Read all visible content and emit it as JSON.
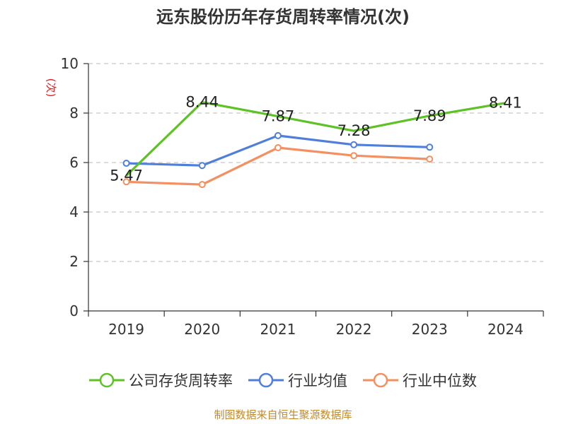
{
  "title": "远东股份历年存货周转率情况(次)",
  "source": "制图数据来自恒生聚源数据库",
  "chart_data": {
    "type": "line",
    "categories": [
      "2019",
      "2020",
      "2021",
      "2022",
      "2023",
      "2024"
    ],
    "ylabel": "(次)",
    "ylim": [
      0,
      10
    ],
    "yticks": [
      0,
      2,
      4,
      6,
      8,
      10
    ],
    "grid": true,
    "legend_position": "bottom",
    "series": [
      {
        "name": "公司存货周转率",
        "color": "#5ec225",
        "values": [
          5.47,
          8.44,
          7.87,
          7.28,
          7.89,
          8.41
        ],
        "labels": [
          "5.47",
          "8.44",
          "7.87",
          "7.28",
          "7.89",
          "8.41"
        ]
      },
      {
        "name": "行业均值",
        "color": "#4f7fdb",
        "values": [
          5.97,
          5.88,
          7.09,
          6.72,
          6.62,
          null
        ]
      },
      {
        "name": "行业中位数",
        "color": "#f48f5f",
        "values": [
          5.22,
          5.11,
          6.6,
          6.28,
          6.14,
          null
        ]
      }
    ]
  }
}
